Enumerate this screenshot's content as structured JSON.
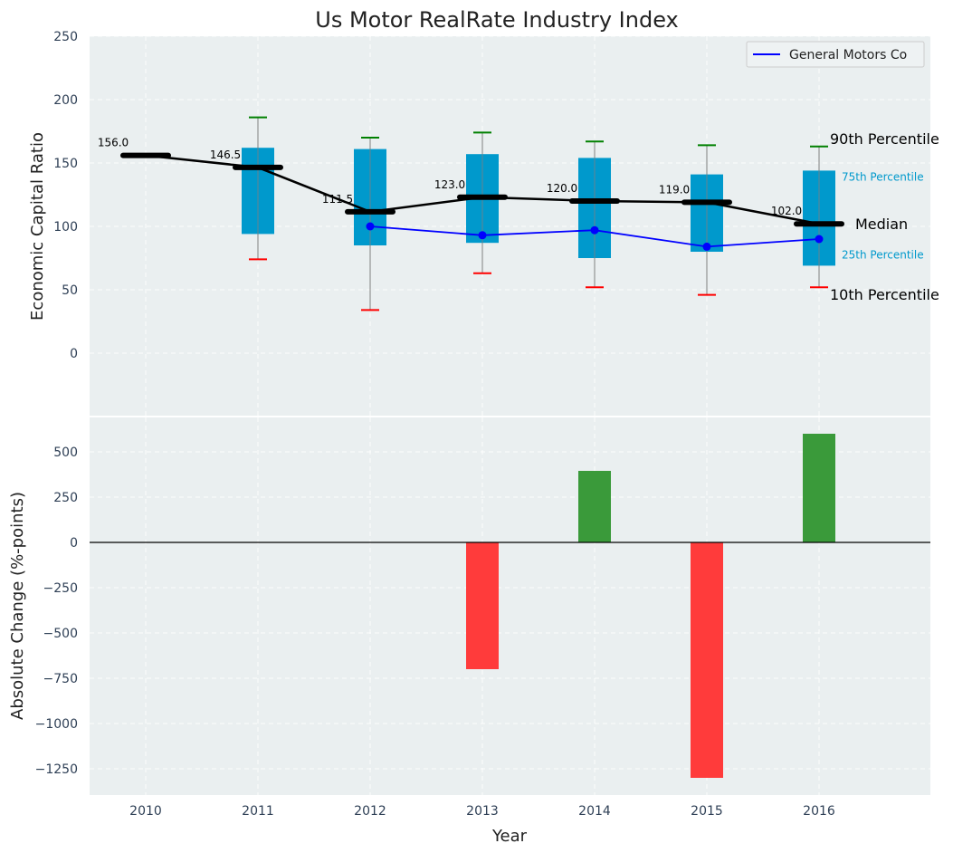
{
  "chart_data": [
    {
      "type": "box",
      "title": "Us Motor RealRate Industry Index",
      "ylabel": "Economic Capital Ratio",
      "ylim": [
        -50,
        250
      ],
      "yticks": [
        0,
        50,
        100,
        150,
        200,
        250
      ],
      "x": [
        "2010",
        "2011",
        "2012",
        "2013",
        "2014",
        "2015",
        "2016"
      ],
      "grid": true,
      "colors": {
        "background": "#eaeff0",
        "box": "#0099cc",
        "median": "#000000",
        "p90_cap": "#008000",
        "p10_cap": "#ff0000",
        "whisker": "#808080",
        "company": "#0000ff",
        "pct_label": "#0099cc"
      },
      "boxes": [
        {
          "year": "2010",
          "p10": null,
          "p25": null,
          "median": 156.0,
          "p75": null,
          "p90": null
        },
        {
          "year": "2011",
          "p10": 74,
          "p25": 94,
          "median": 146.5,
          "p75": 162,
          "p90": 186
        },
        {
          "year": "2012",
          "p10": 34,
          "p25": 85,
          "median": 111.5,
          "p75": 161,
          "p90": 170
        },
        {
          "year": "2013",
          "p10": 63,
          "p25": 87,
          "median": 123.0,
          "p75": 157,
          "p90": 174
        },
        {
          "year": "2014",
          "p10": 52,
          "p25": 75,
          "median": 120.0,
          "p75": 154,
          "p90": 167
        },
        {
          "year": "2015",
          "p10": 46,
          "p25": 80,
          "median": 119.0,
          "p75": 141,
          "p90": 164
        },
        {
          "year": "2016",
          "p10": 52,
          "p25": 69,
          "median": 102.0,
          "p75": 144,
          "p90": 163
        }
      ],
      "median_labels": [
        "156.0",
        "146.5",
        "111.5",
        "123.0",
        "120.0",
        "119.0",
        "102.0"
      ],
      "series": [
        {
          "name": "General Motors Co",
          "x": [
            "2012",
            "2013",
            "2014",
            "2015",
            "2016"
          ],
          "values": [
            100,
            93,
            97,
            84,
            90
          ]
        }
      ],
      "percentile_labels": {
        "p90": "90th Percentile",
        "p75": "75th Percentile",
        "median": "Median",
        "p25": "25th Percentile",
        "p10": "10th Percentile"
      },
      "legend": {
        "placement": "top-right",
        "entries": [
          "General Motors Co"
        ]
      }
    },
    {
      "type": "bar",
      "ylabel": "Absolute Change (%-points)",
      "xlabel": "Year",
      "ylim": [
        -1380,
        700
      ],
      "yticks": [
        -1250,
        -1000,
        -750,
        -500,
        -250,
        0,
        250,
        500
      ],
      "ytick_labels": [
        "−1250",
        "−1000",
        "−750",
        "−500",
        "−250",
        "0",
        "250",
        "500"
      ],
      "categories": [
        "2010",
        "2011",
        "2012",
        "2013",
        "2014",
        "2015",
        "2016"
      ],
      "values": [
        null,
        null,
        null,
        -700,
        395,
        -1300,
        600
      ],
      "colors": {
        "positive": "#3a9a3a",
        "negative": "#ff3b3b",
        "zero_line": "#000000"
      },
      "grid": true
    }
  ]
}
